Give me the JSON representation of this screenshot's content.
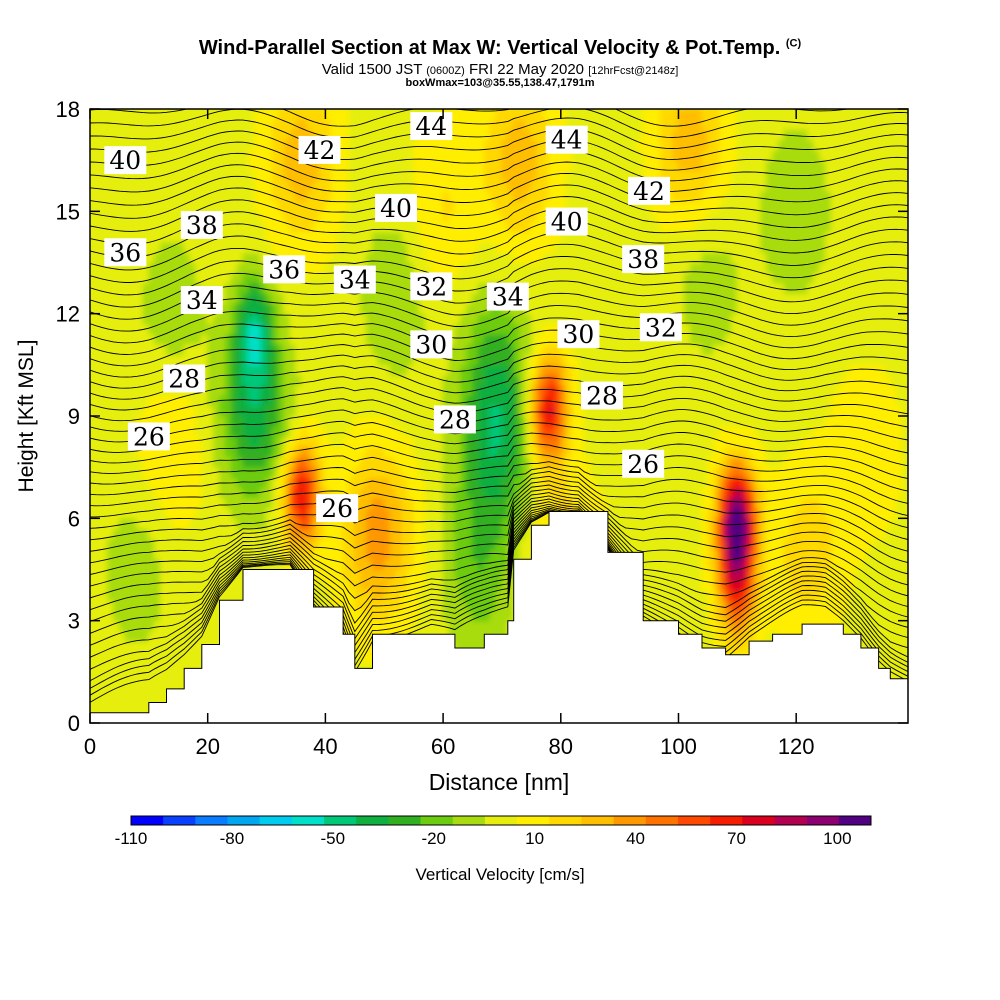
{
  "header": {
    "title": "Wind-Parallel Section at Max W: Vertical Velocity & Pot.Temp.",
    "title_mark": "(C)",
    "valid_prefix": "Valid 1500 JST",
    "valid_utc": "(0600Z)",
    "valid_date": "FRI 22 May 2020",
    "valid_fcst": "[12hrFcst@2148z]",
    "box_info": "boxWmax=103@35.55,138.47,1791m"
  },
  "chart_data": {
    "type": "heatmap",
    "xlabel": "Distance [nm]",
    "ylabel": "Height [Kft MSL]",
    "xlim": [
      0,
      139
    ],
    "ylim": [
      0,
      18
    ],
    "x_ticks": [
      0,
      20,
      40,
      60,
      80,
      100,
      120
    ],
    "y_ticks": [
      0,
      3,
      6,
      9,
      12,
      15,
      18
    ],
    "colorbar": {
      "label": "Vertical Velocity [cm/s]",
      "tick_labels": [
        "-110",
        "-80",
        "-50",
        "-20",
        "10",
        "40",
        "70",
        "100"
      ],
      "levels": [
        -110,
        -100,
        -90,
        -80,
        -70,
        -60,
        -50,
        -40,
        -30,
        -20,
        -10,
        0,
        10,
        20,
        30,
        40,
        50,
        60,
        70,
        80,
        90,
        100,
        110
      ],
      "colors": [
        "#0000ff",
        "#0a40ff",
        "#0a7cff",
        "#00a6f0",
        "#00ccf0",
        "#00e0c8",
        "#00c878",
        "#10b040",
        "#30b020",
        "#6ccc10",
        "#a8dc10",
        "#e6ee10",
        "#ffee00",
        "#ffd800",
        "#ffbe00",
        "#ff9800",
        "#ff7200",
        "#ff4800",
        "#f51c00",
        "#dc0020",
        "#b40050",
        "#8c0070",
        "#500080"
      ]
    },
    "vertical_velocity_extrema": [
      {
        "x": 28,
        "z": 11.5,
        "w": -45
      },
      {
        "x": 28,
        "z": 9.0,
        "w": -40
      },
      {
        "x": 69,
        "z": 8.0,
        "w": -35
      },
      {
        "x": 69,
        "z": 10.5,
        "w": -25
      },
      {
        "x": 66,
        "z": 4.5,
        "w": -22
      },
      {
        "x": 36,
        "z": 6.7,
        "w": 75
      },
      {
        "x": 78,
        "z": 9.2,
        "w": 80
      },
      {
        "x": 110,
        "z": 6.0,
        "w": 103
      },
      {
        "x": 110,
        "z": 4.0,
        "w": 60
      },
      {
        "x": 49,
        "z": 5.5,
        "w": 40
      },
      {
        "x": 36,
        "z": 16.5,
        "w": 30
      },
      {
        "x": 73,
        "z": 16.5,
        "w": 30
      },
      {
        "x": 102,
        "z": 17.0,
        "w": 30
      },
      {
        "x": 60,
        "z": 15.0,
        "w": 15
      },
      {
        "x": 81,
        "z": 4.5,
        "w": 25
      },
      {
        "x": 122,
        "z": 5.0,
        "w": 20
      },
      {
        "x": 14,
        "z": 8.0,
        "w": 15
      },
      {
        "x": 8,
        "z": 4.5,
        "w": -12
      },
      {
        "x": 14,
        "z": 12.0,
        "w": -12
      },
      {
        "x": 52,
        "z": 12.5,
        "w": -15
      },
      {
        "x": 105,
        "z": 13.0,
        "w": -12
      },
      {
        "x": 120,
        "z": 15.0,
        "w": -15
      },
      {
        "x": 132,
        "z": 8.0,
        "w": 12
      }
    ],
    "terrain": [
      [
        0,
        0.3
      ],
      [
        10,
        0.6
      ],
      [
        13,
        1.0
      ],
      [
        16,
        1.6
      ],
      [
        19,
        2.3
      ],
      [
        22,
        3.6
      ],
      [
        26,
        4.5
      ],
      [
        34,
        4.5
      ],
      [
        38,
        3.4
      ],
      [
        43,
        2.6
      ],
      [
        45,
        1.6
      ],
      [
        48,
        2.6
      ],
      [
        58,
        2.6
      ],
      [
        62,
        2.2
      ],
      [
        67,
        2.6
      ],
      [
        71,
        3.0
      ],
      [
        72,
        4.8
      ],
      [
        75,
        5.8
      ],
      [
        78,
        6.2
      ],
      [
        83,
        6.2
      ],
      [
        88,
        5.0
      ],
      [
        94,
        3.0
      ],
      [
        100,
        2.6
      ],
      [
        104,
        2.2
      ],
      [
        108,
        2.0
      ],
      [
        112,
        2.4
      ],
      [
        116,
        2.6
      ],
      [
        121,
        2.9
      ],
      [
        125,
        2.9
      ],
      [
        128,
        2.6
      ],
      [
        131,
        2.2
      ],
      [
        134,
        1.6
      ],
      [
        136,
        1.3
      ],
      [
        139,
        1.0
      ]
    ],
    "theta_contour_labels": [
      {
        "text": "40",
        "x": 6,
        "z": 16.5
      },
      {
        "text": "42",
        "x": 39,
        "z": 16.8
      },
      {
        "text": "44",
        "x": 58,
        "z": 17.5
      },
      {
        "text": "44",
        "x": 81,
        "z": 17.1
      },
      {
        "text": "38",
        "x": 19,
        "z": 14.6
      },
      {
        "text": "40",
        "x": 52,
        "z": 15.1
      },
      {
        "text": "40",
        "x": 81,
        "z": 14.7
      },
      {
        "text": "42",
        "x": 95,
        "z": 15.6
      },
      {
        "text": "36",
        "x": 6,
        "z": 13.8
      },
      {
        "text": "36",
        "x": 33,
        "z": 13.3
      },
      {
        "text": "34",
        "x": 19,
        "z": 12.4
      },
      {
        "text": "34",
        "x": 45,
        "z": 13.0
      },
      {
        "text": "32",
        "x": 58,
        "z": 12.8
      },
      {
        "text": "34",
        "x": 71,
        "z": 12.5
      },
      {
        "text": "38",
        "x": 94,
        "z": 13.6
      },
      {
        "text": "32",
        "x": 97,
        "z": 11.6
      },
      {
        "text": "30",
        "x": 58,
        "z": 11.1
      },
      {
        "text": "30",
        "x": 83,
        "z": 11.4
      },
      {
        "text": "28",
        "x": 16,
        "z": 10.1
      },
      {
        "text": "28",
        "x": 62,
        "z": 8.9
      },
      {
        "text": "28",
        "x": 87,
        "z": 9.6
      },
      {
        "text": "26",
        "x": 10,
        "z": 8.4
      },
      {
        "text": "26",
        "x": 42,
        "z": 6.3
      },
      {
        "text": "26",
        "x": 94,
        "z": 7.6
      }
    ]
  }
}
